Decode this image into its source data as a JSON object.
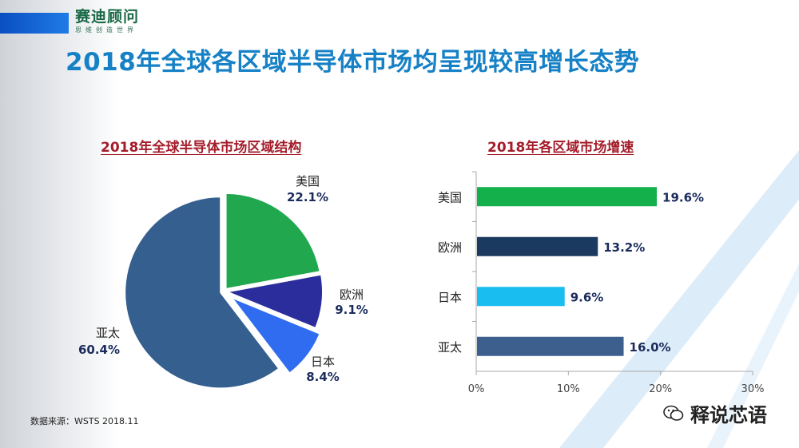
{
  "brand": {
    "name": "赛迪顾问",
    "tagline": "思维创造世界"
  },
  "title": "2018年全球各区域半导体市场均呈现较高增长态势",
  "source": "数据来源：WSTS 2018.11",
  "watermark": {
    "text": "释说芯语",
    "icon": "wechat-icon"
  },
  "colors": {
    "title": "#1781c6",
    "subtitle": "#a41d2a",
    "brand": "#1b6a48"
  },
  "chart_data": [
    {
      "type": "pie",
      "title": "2018年全球半导体市场区域结构",
      "slices": [
        {
          "label": "美国",
          "value": 22.1,
          "display": "22.1%",
          "color": "#21a84f"
        },
        {
          "label": "欧洲",
          "value": 9.1,
          "display": "9.1%",
          "color": "#2a2d9b"
        },
        {
          "label": "日本",
          "value": 8.4,
          "display": "8.4%",
          "color": "#2f6cf0"
        },
        {
          "label": "亚太",
          "value": 60.4,
          "display": "60.4%",
          "color": "#355f8f"
        }
      ],
      "exploded": "日本"
    },
    {
      "type": "bar",
      "orientation": "horizontal",
      "title": "2018年各区域市场增速",
      "categories": [
        "美国",
        "欧洲",
        "日本",
        "亚太"
      ],
      "values": [
        19.6,
        13.2,
        9.6,
        16.0
      ],
      "value_labels": [
        "19.6%",
        "13.2%",
        "9.6%",
        "16.0%"
      ],
      "colors": [
        "#13b04c",
        "#1b3a5f",
        "#19bdf0",
        "#3c5f8e"
      ],
      "xlim": [
        0,
        30
      ],
      "xticks": [
        "0%",
        "10%",
        "20%",
        "30%"
      ],
      "grid": false
    }
  ]
}
